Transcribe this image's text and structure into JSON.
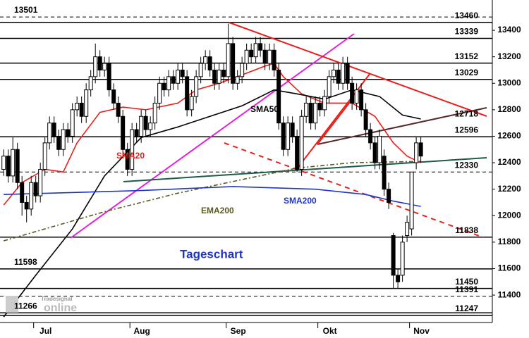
{
  "chart_data": {
    "type": "candlestick",
    "title": "Tageschart",
    "logo": {
      "small": "Tradesignal",
      "big": "online"
    },
    "xlim": [
      -0.8,
      106.6
    ],
    "ylim": [
      11193,
      13629
    ],
    "xticks": [
      {
        "value": 7,
        "label": "Jul"
      },
      {
        "value": 28,
        "label": "Aug"
      },
      {
        "value": 49,
        "label": "Sep"
      },
      {
        "value": 69,
        "label": "Okt"
      },
      {
        "value": 89,
        "label": "Nov"
      }
    ],
    "yticks": [
      11400,
      11600,
      11800,
      12000,
      12200,
      12400,
      12600,
      12800,
      13000,
      13200,
      13400
    ],
    "candles": {
      "open": [
        12350,
        12450,
        12300,
        12500,
        12250,
        12100,
        12050,
        12250,
        12150,
        12350,
        12550,
        12700,
        12600,
        12500,
        12650,
        12600,
        12800,
        12850,
        12750,
        12950,
        13050,
        13200,
        13100,
        13150,
        12950,
        12850,
        12750,
        12500,
        12350,
        12650,
        12600,
        12750,
        12650,
        12700,
        12850,
        13000,
        12950,
        13050,
        13000,
        13100,
        13050,
        12800,
        12900,
        13050,
        13150,
        13200,
        13100,
        13000,
        13100,
        13050,
        13300,
        13000,
        13050,
        13150,
        13250,
        13200,
        13300,
        13250,
        13150,
        13250,
        13100,
        12700,
        12500,
        12700,
        12600,
        12350,
        12750,
        12850,
        12700,
        12850,
        12800,
        12900,
        13050,
        13100,
        13000,
        13150,
        13000,
        12850,
        12950,
        12800,
        12650,
        12550,
        12400,
        12450,
        12200,
        11850,
        11550,
        11550,
        11850,
        11900,
        12400,
        12550
      ],
      "high": [
        12500,
        12500,
        12600,
        12550,
        12300,
        12150,
        12300,
        12300,
        12400,
        12600,
        12750,
        12750,
        12650,
        12700,
        12700,
        12850,
        12900,
        12900,
        13000,
        13100,
        13300,
        13250,
        13200,
        13200,
        13000,
        12900,
        12800,
        12550,
        12700,
        12700,
        12800,
        12800,
        12750,
        12900,
        13050,
        13050,
        13100,
        13100,
        13150,
        13150,
        13100,
        12950,
        13100,
        13200,
        13250,
        13250,
        13150,
        13150,
        13150,
        13450,
        13350,
        13100,
        13200,
        13300,
        13300,
        13350,
        13350,
        13300,
        13300,
        13300,
        13150,
        12750,
        12750,
        12750,
        12650,
        12800,
        12900,
        12900,
        12900,
        12900,
        12950,
        13100,
        13150,
        13150,
        13200,
        13200,
        13050,
        13000,
        13000,
        12850,
        12700,
        12600,
        12650,
        12500,
        12250,
        11870,
        11600,
        11850,
        12000,
        12330,
        12600,
        12600
      ],
      "low": [
        12300,
        12250,
        12250,
        12200,
        12000,
        11950,
        12000,
        12100,
        12100,
        12300,
        12500,
        12550,
        12450,
        12450,
        12550,
        12550,
        12750,
        12700,
        12700,
        12900,
        13000,
        13050,
        13050,
        12900,
        12800,
        12700,
        12450,
        12300,
        12300,
        12550,
        12550,
        12600,
        12600,
        12650,
        12800,
        12900,
        12900,
        12950,
        12950,
        13000,
        12750,
        12750,
        12850,
        13000,
        13100,
        13050,
        12950,
        12950,
        13000,
        13000,
        12950,
        12950,
        13000,
        13100,
        13150,
        13150,
        13200,
        13100,
        13100,
        13050,
        12650,
        12450,
        12450,
        12550,
        12330,
        12300,
        12700,
        12650,
        12650,
        12750,
        12750,
        12850,
        13000,
        12950,
        12950,
        12950,
        12800,
        12800,
        12750,
        12600,
        12500,
        12350,
        12350,
        12150,
        12050,
        11450,
        11450,
        11500,
        11800,
        11850,
        12350,
        12400
      ],
      "close": [
        12450,
        12300,
        12500,
        12250,
        12100,
        12050,
        12250,
        12150,
        12350,
        12550,
        12700,
        12600,
        12500,
        12650,
        12600,
        12800,
        12850,
        12750,
        12950,
        13050,
        13200,
        13100,
        13150,
        12950,
        12850,
        12750,
        12500,
        12350,
        12650,
        12600,
        12750,
        12650,
        12700,
        12850,
        13000,
        12950,
        13050,
        13000,
        13100,
        13050,
        12800,
        12900,
        13050,
        13150,
        13200,
        13100,
        13000,
        13100,
        13050,
        13300,
        13000,
        13050,
        13150,
        13250,
        13200,
        13300,
        13250,
        13150,
        13250,
        13100,
        12700,
        12500,
        12700,
        12600,
        12350,
        12750,
        12850,
        12700,
        12850,
        12800,
        12900,
        13050,
        13100,
        13000,
        13150,
        13000,
        12850,
        12950,
        12800,
        12650,
        12550,
        12400,
        12600,
        12200,
        12100,
        11550,
        11500,
        11800,
        11950,
        12330,
        12550,
        12450
      ]
    },
    "series": [
      {
        "name": "SMA20",
        "color": "#e8201a",
        "x": [
          0,
          4,
          9,
          13,
          16,
          21,
          26,
          31,
          38,
          42,
          47,
          51,
          57,
          59,
          61,
          65,
          70,
          76,
          81,
          85,
          88,
          91
        ],
        "values": [
          12080,
          12250,
          12350,
          12330,
          12550,
          12780,
          12820,
          12800,
          12850,
          12950,
          13000,
          13050,
          13130,
          13150,
          13050,
          12920,
          12850,
          12850,
          12750,
          12550,
          12450,
          12400
        ]
      },
      {
        "name": "SMA50",
        "color": "#000000",
        "x": [
          0,
          7,
          15,
          22,
          30,
          38,
          45,
          52,
          59,
          64,
          70,
          76,
          82,
          87,
          91
        ],
        "values": [
          11235,
          11550,
          11900,
          12300,
          12590,
          12670,
          12750,
          12830,
          12950,
          12920,
          12880,
          12950,
          12900,
          12760,
          12730
        ]
      },
      {
        "name": "EMA200",
        "color": "#5a5a20",
        "dashed": true,
        "x": [
          0,
          22,
          38,
          53,
          64,
          76,
          91
        ],
        "values": [
          11810,
          12030,
          12170,
          12280,
          12360,
          12400,
          12410
        ]
      },
      {
        "name": "SMA200",
        "color": "#1f35c8",
        "x": [
          0,
          30,
          50,
          68,
          79,
          85,
          91
        ],
        "values": [
          12160,
          12190,
          12220,
          12200,
          12160,
          12110,
          12070
        ]
      }
    ],
    "levels": [
      {
        "value": 13501,
        "side": "left",
        "dashed": true
      },
      {
        "value": 13460,
        "side": "right",
        "dashed": false
      },
      {
        "value": 13339,
        "side": "right",
        "dashed": false
      },
      {
        "value": 13152,
        "side": "right",
        "dashed": false
      },
      {
        "value": 13029,
        "side": "right",
        "dashed": false
      },
      {
        "value": 12718,
        "side": "right",
        "dashed": false,
        "line": false
      },
      {
        "value": 12596,
        "side": "right",
        "dashed": false
      },
      {
        "value": 12330,
        "side": "right",
        "dashed": true
      },
      {
        "value": 11838,
        "side": "right",
        "dashed": false
      },
      {
        "value": 11598,
        "side": "left",
        "dashed": false
      },
      {
        "value": 11450,
        "side": "right",
        "dashed": false
      },
      {
        "value": 11391,
        "side": "right",
        "dashed": true
      },
      {
        "value": 11266,
        "side": "left",
        "dashed": false
      },
      {
        "value": 11247,
        "side": "right",
        "dashed": false
      }
    ]
  }
}
